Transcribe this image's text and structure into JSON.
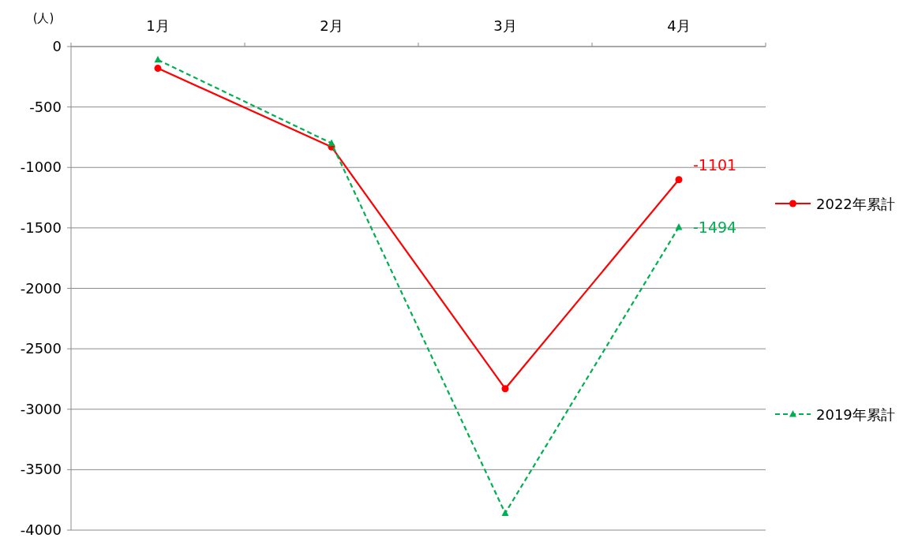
{
  "chart_data": {
    "type": "line",
    "ylabel": "(人)",
    "categories": [
      "1月",
      "2月",
      "3月",
      "4月"
    ],
    "series": [
      {
        "name": "2022年累計",
        "color": "#ff0000",
        "marker": "circle",
        "line_style": "solid",
        "values": [
          -180,
          -830,
          -2830,
          -1101
        ],
        "value_labels": [
          null,
          null,
          null,
          "-1101"
        ]
      },
      {
        "name": "2019年累計",
        "color": "#00b050",
        "marker": "triangle",
        "line_style": "dashed",
        "values": [
          -110,
          -800,
          -3860,
          -1494
        ],
        "value_labels": [
          null,
          null,
          null,
          "-1494"
        ]
      }
    ],
    "ylim": [
      -4000,
      0
    ],
    "yticks": [
      0,
      -500,
      -1000,
      -1500,
      -2000,
      -2500,
      -3000,
      -3500,
      -4000
    ],
    "grid": "y",
    "legend": "right"
  }
}
